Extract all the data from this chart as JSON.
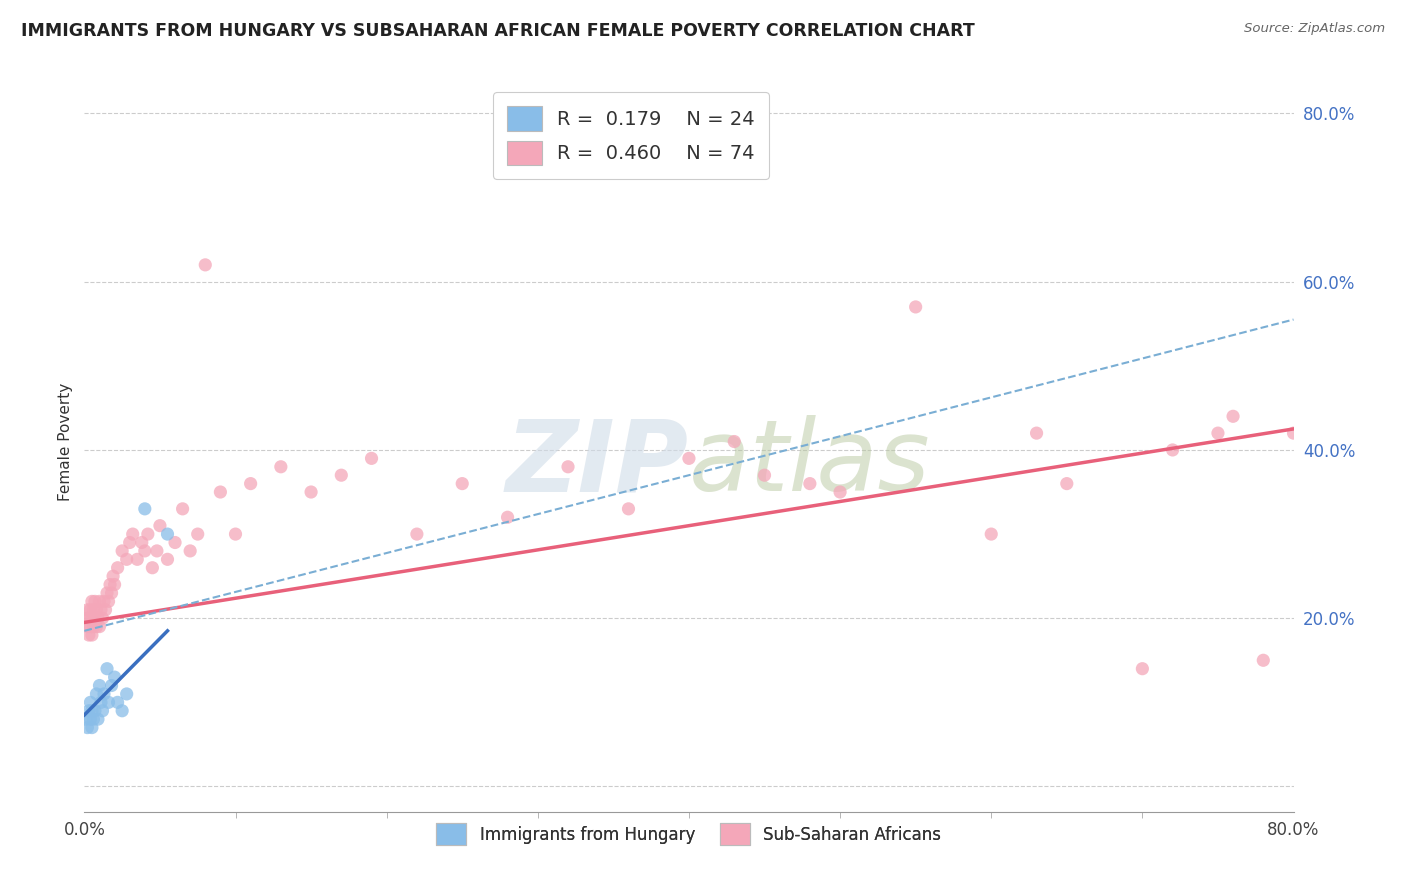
{
  "title": "IMMIGRANTS FROM HUNGARY VS SUBSAHARAN AFRICAN FEMALE POVERTY CORRELATION CHART",
  "source": "Source: ZipAtlas.com",
  "ylabel": "Female Poverty",
  "xlim": [
    0.0,
    0.8
  ],
  "ylim": [
    -0.03,
    0.85
  ],
  "y_tick_positions": [
    0.0,
    0.2,
    0.4,
    0.6,
    0.8
  ],
  "y_tick_labels": [
    "",
    "20.0%",
    "40.0%",
    "60.0%",
    "80.0%"
  ],
  "legend_r1": "R =  0.179",
  "legend_n1": "N = 24",
  "legend_r2": "R =  0.460",
  "legend_n2": "N = 74",
  "color_hungary": "#89bde8",
  "color_subsaharan": "#f4a7b9",
  "color_hungary_line": "#3a6fc0",
  "color_subsaharan_line": "#e8607a",
  "color_dashed": "#7aaed4",
  "watermark_color": "#d0dce8",
  "background_color": "#ffffff",
  "hungary_x": [
    0.001,
    0.002,
    0.003,
    0.004,
    0.004,
    0.005,
    0.005,
    0.006,
    0.007,
    0.008,
    0.009,
    0.01,
    0.011,
    0.012,
    0.013,
    0.015,
    0.016,
    0.018,
    0.02,
    0.022,
    0.025,
    0.028,
    0.04,
    0.055
  ],
  "hungary_y": [
    0.08,
    0.07,
    0.09,
    0.08,
    0.1,
    0.07,
    0.09,
    0.08,
    0.09,
    0.11,
    0.08,
    0.12,
    0.1,
    0.09,
    0.11,
    0.14,
    0.1,
    0.12,
    0.13,
    0.1,
    0.09,
    0.11,
    0.33,
    0.3
  ],
  "subsaharan_x": [
    0.001,
    0.002,
    0.002,
    0.003,
    0.003,
    0.004,
    0.004,
    0.005,
    0.005,
    0.005,
    0.006,
    0.006,
    0.007,
    0.007,
    0.008,
    0.008,
    0.009,
    0.01,
    0.01,
    0.011,
    0.012,
    0.013,
    0.014,
    0.015,
    0.016,
    0.017,
    0.018,
    0.019,
    0.02,
    0.022,
    0.025,
    0.028,
    0.03,
    0.032,
    0.035,
    0.038,
    0.04,
    0.042,
    0.045,
    0.048,
    0.05,
    0.055,
    0.06,
    0.065,
    0.07,
    0.075,
    0.08,
    0.09,
    0.1,
    0.11,
    0.13,
    0.15,
    0.17,
    0.19,
    0.22,
    0.25,
    0.28,
    0.32,
    0.36,
    0.4,
    0.43,
    0.45,
    0.48,
    0.5,
    0.55,
    0.6,
    0.63,
    0.65,
    0.7,
    0.72,
    0.75,
    0.76,
    0.78,
    0.8
  ],
  "subsaharan_y": [
    0.2,
    0.19,
    0.21,
    0.18,
    0.2,
    0.19,
    0.21,
    0.18,
    0.2,
    0.22,
    0.19,
    0.21,
    0.2,
    0.22,
    0.19,
    0.21,
    0.2,
    0.22,
    0.19,
    0.21,
    0.2,
    0.22,
    0.21,
    0.23,
    0.22,
    0.24,
    0.23,
    0.25,
    0.24,
    0.26,
    0.28,
    0.27,
    0.29,
    0.3,
    0.27,
    0.29,
    0.28,
    0.3,
    0.26,
    0.28,
    0.31,
    0.27,
    0.29,
    0.33,
    0.28,
    0.3,
    0.62,
    0.35,
    0.3,
    0.36,
    0.38,
    0.35,
    0.37,
    0.39,
    0.3,
    0.36,
    0.32,
    0.38,
    0.33,
    0.39,
    0.41,
    0.37,
    0.36,
    0.35,
    0.57,
    0.3,
    0.42,
    0.36,
    0.14,
    0.4,
    0.42,
    0.44,
    0.15,
    0.42
  ],
  "pink_line_x0": 0.0,
  "pink_line_y0": 0.195,
  "pink_line_x1": 0.8,
  "pink_line_y1": 0.425,
  "dashed_line_x0": 0.0,
  "dashed_line_y0": 0.185,
  "dashed_line_x1": 0.8,
  "dashed_line_y1": 0.555,
  "blue_line_x0": 0.0,
  "blue_line_y0": 0.085,
  "blue_line_x1": 0.055,
  "blue_line_y1": 0.185
}
